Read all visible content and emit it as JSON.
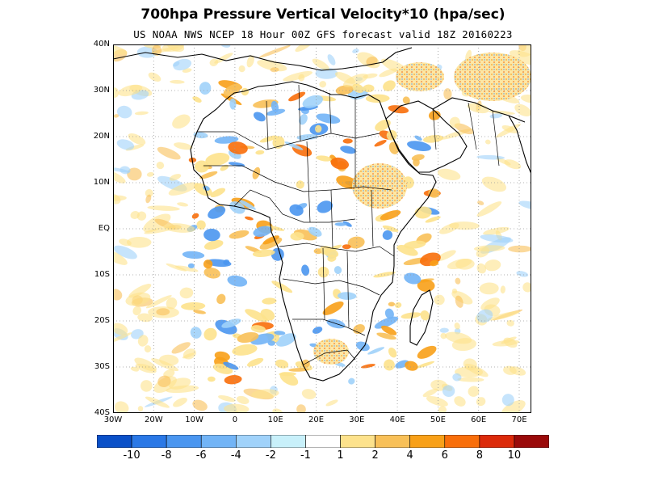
{
  "title": "700hpa Pressure Vertical Velocity*10 (hpa/sec)",
  "subtitle": "US NOAA NWS NCEP 18 Hour 00Z GFS forecast valid 18Z 20160223",
  "map": {
    "lat_labels": [
      "40N",
      "30N",
      "20N",
      "10N",
      "EQ",
      "10S",
      "20S",
      "30S",
      "40S"
    ],
    "lon_labels": [
      "30W",
      "20W",
      "10W",
      "0",
      "10E",
      "20E",
      "30E",
      "40E",
      "50E",
      "60E",
      "70E"
    ],
    "grid": "dotted"
  },
  "colorbar": {
    "colors": [
      "#0a50c8",
      "#2a78e6",
      "#4a96f0",
      "#72b4f6",
      "#a0d2fa",
      "#c8f0fa",
      "#ffffff",
      "#fde28c",
      "#f8c058",
      "#f8a018",
      "#f86e0a",
      "#dc2a0a",
      "#9a0a0a"
    ],
    "labels": [
      "-10",
      "-8",
      "-6",
      "-4",
      "-2",
      "-1",
      "1",
      "2",
      "4",
      "6",
      "8",
      "10"
    ]
  }
}
